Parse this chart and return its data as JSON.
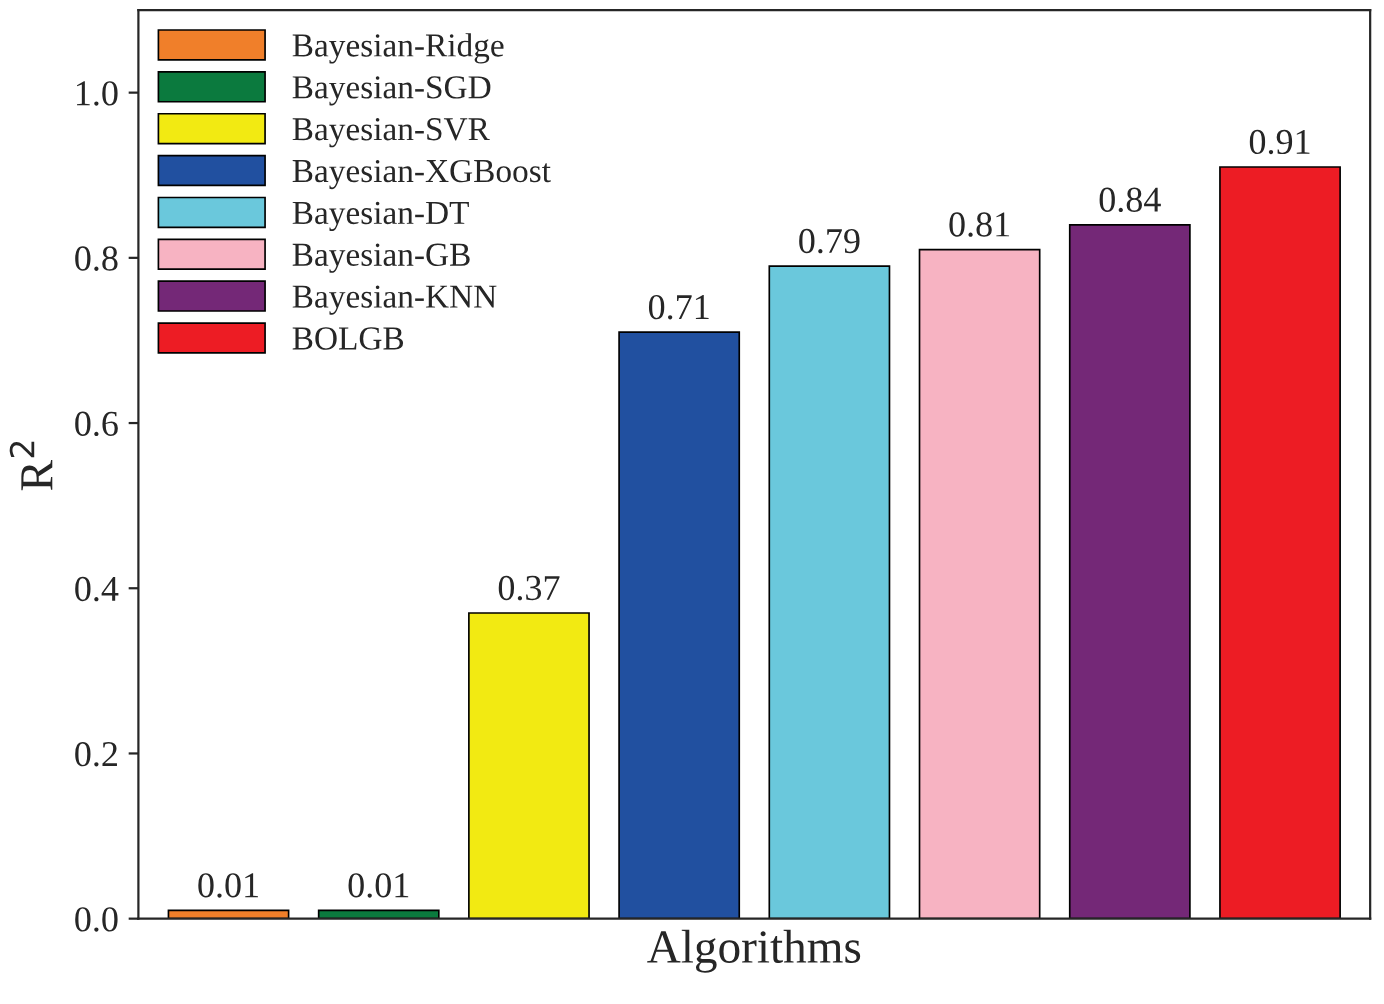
{
  "chart_data": {
    "type": "bar",
    "xlabel": "Algorithms",
    "ylabel": "R$^{2}$",
    "categories": [
      null,
      null,
      null,
      null,
      null,
      null,
      null,
      null
    ],
    "series": [
      {
        "name": "Bayesian-Ridge",
        "color": "#f07f2a",
        "values": [
          0.01,
          null,
          null,
          null,
          null,
          null,
          null,
          null
        ]
      },
      {
        "name": "Bayesian-SGD",
        "color": "#0b7a3e",
        "values": [
          null,
          0.01,
          null,
          null,
          null,
          null,
          null,
          null
        ]
      },
      {
        "name": "Bayesian-SVR",
        "color": "#f2ea12",
        "values": [
          null,
          null,
          0.37,
          null,
          null,
          null,
          null,
          null
        ]
      },
      {
        "name": "Bayesian-XGBoost",
        "color": "#2150a0",
        "values": [
          null,
          null,
          null,
          0.71,
          null,
          null,
          null,
          null
        ]
      },
      {
        "name": "Bayesian-DT",
        "color": "#6ac8dc",
        "values": [
          null,
          null,
          null,
          null,
          0.79,
          null,
          null,
          null
        ]
      },
      {
        "name": "Bayesian-GB",
        "color": "#f7b3c2",
        "values": [
          null,
          null,
          null,
          null,
          null,
          0.81,
          null,
          null
        ]
      },
      {
        "name": "Bayesian-KNN",
        "color": "#742877",
        "values": [
          null,
          null,
          null,
          null,
          null,
          null,
          0.84,
          null
        ]
      },
      {
        "name": "BOLGB",
        "color": "#ed1c24",
        "values": [
          null,
          null,
          null,
          null,
          null,
          null,
          null,
          0.91
        ]
      }
    ],
    "ylim": [
      0,
      1.1
    ],
    "yticks": [
      {
        "value": 0,
        "label": "0.0"
      },
      {
        "value": 0.2,
        "label": "0.2"
      },
      {
        "value": 0.4,
        "label": "0.4"
      },
      {
        "value": 0.6,
        "label": "0.6"
      },
      {
        "value": 0.8,
        "label": "0.8"
      },
      {
        "value": 1.0,
        "label": "1.0"
      }
    ],
    "tick_labels": "y",
    "data_labels": true,
    "legend": "top left",
    "grid": false
  }
}
